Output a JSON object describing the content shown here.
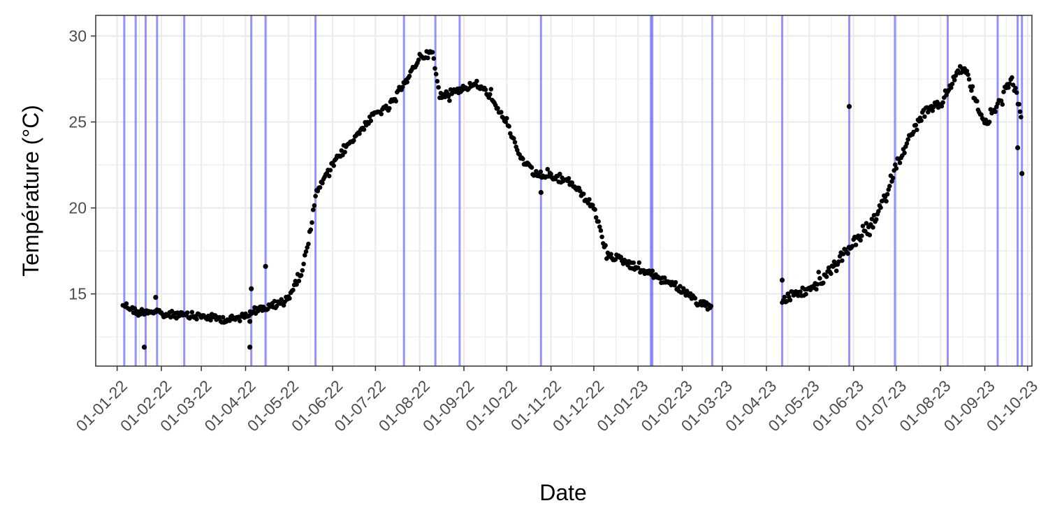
{
  "chart_data": {
    "type": "scatter",
    "title": "",
    "xlabel": "Date",
    "ylabel": "Température (°C)",
    "x_type": "date",
    "xlim": [
      "2021-12-17",
      "2023-10-04"
    ],
    "ylim": [
      10.8,
      31.2
    ],
    "grid": true,
    "legend": "none",
    "x_ticks": [
      "2022-01-01",
      "2022-02-01",
      "2022-03-01",
      "2022-04-01",
      "2022-05-01",
      "2022-06-01",
      "2022-07-01",
      "2022-08-01",
      "2022-09-01",
      "2022-10-01",
      "2022-11-01",
      "2022-12-01",
      "2023-01-01",
      "2023-02-01",
      "2023-03-01",
      "2023-04-01",
      "2023-05-01",
      "2023-06-01",
      "2023-07-01",
      "2023-08-01",
      "2023-09-01",
      "2023-10-01"
    ],
    "x_tick_labels": [
      "01-01-22",
      "01-02-22",
      "01-03-22",
      "01-04-22",
      "01-05-22",
      "01-06-22",
      "01-07-22",
      "01-08-22",
      "01-09-22",
      "01-10-22",
      "01-11-22",
      "01-12-22",
      "01-01-23",
      "01-02-23",
      "01-03-23",
      "01-04-23",
      "01-05-23",
      "01-06-23",
      "01-07-23",
      "01-08-23",
      "01-09-23",
      "01-10-23"
    ],
    "y_ticks": [
      15,
      20,
      25,
      30
    ],
    "y_tick_labels": [
      "15",
      "20",
      "25",
      "30"
    ],
    "colors": {
      "points": "#000000",
      "vlines": "#6666ff",
      "grid": "#ebebeb",
      "panel_border": "#333333"
    },
    "vertical_lines": [
      "2022-01-06",
      "2022-01-14",
      "2022-01-21",
      "2022-01-29",
      "2022-02-17",
      "2022-04-05",
      "2022-04-15",
      "2022-05-20",
      "2022-07-21",
      "2022-08-12",
      "2022-08-29",
      "2022-10-25",
      "2023-01-10",
      "2023-01-11",
      "2023-02-22",
      "2023-04-12",
      "2023-05-29",
      "2023-06-30",
      "2023-08-06",
      "2023-09-10",
      "2023-09-24",
      "2023-09-27"
    ],
    "series": [
      {
        "values": [
          [
            "2022-01-05",
            14.4
          ],
          [
            "2022-01-10",
            14.2
          ],
          [
            "2022-01-15",
            13.9
          ],
          [
            "2022-01-20",
            14.0
          ],
          [
            "2022-01-25",
            14.0
          ],
          [
            "2022-02-01",
            13.8
          ],
          [
            "2022-02-10",
            13.8
          ],
          [
            "2022-02-20",
            13.7
          ],
          [
            "2022-03-01",
            13.7
          ],
          [
            "2022-03-10",
            13.6
          ],
          [
            "2022-03-20",
            13.5
          ],
          [
            "2022-03-28",
            13.6
          ],
          [
            "2022-04-05",
            14.0
          ],
          [
            "2022-04-15",
            14.2
          ],
          [
            "2022-04-22",
            14.3
          ],
          [
            "2022-05-01",
            14.8
          ],
          [
            "2022-05-10",
            16.2
          ],
          [
            "2022-05-15",
            18.0
          ],
          [
            "2022-05-20",
            20.8
          ],
          [
            "2022-06-01",
            22.5
          ],
          [
            "2022-06-15",
            24.0
          ],
          [
            "2022-07-01",
            25.5
          ],
          [
            "2022-07-10",
            25.8
          ],
          [
            "2022-07-20",
            27.0
          ],
          [
            "2022-08-01",
            28.8
          ],
          [
            "2022-08-10",
            29.0
          ],
          [
            "2022-08-15",
            26.5
          ],
          [
            "2022-08-25",
            26.8
          ],
          [
            "2022-09-10",
            27.2
          ],
          [
            "2022-09-20",
            26.5
          ],
          [
            "2022-10-01",
            25.0
          ],
          [
            "2022-10-10",
            23.0
          ],
          [
            "2022-10-20",
            22.0
          ],
          [
            "2022-11-01",
            21.8
          ],
          [
            "2022-11-15",
            21.5
          ],
          [
            "2022-12-01",
            20.0
          ],
          [
            "2022-12-10",
            17.3
          ],
          [
            "2022-12-20",
            17.0
          ],
          [
            "2023-01-01",
            16.5
          ],
          [
            "2023-01-15",
            16.0
          ],
          [
            "2023-01-25",
            15.6
          ],
          [
            "2023-02-01",
            15.2
          ],
          [
            "2023-02-10",
            14.5
          ],
          [
            "2023-02-22",
            14.3
          ],
          [
            "2023-04-12",
            14.5
          ],
          [
            "2023-04-20",
            15.0
          ],
          [
            "2023-05-01",
            15.2
          ],
          [
            "2023-05-10",
            15.8
          ],
          [
            "2023-05-20",
            16.8
          ],
          [
            "2023-06-01",
            18.0
          ],
          [
            "2023-06-10",
            18.5
          ],
          [
            "2023-06-20",
            20.0
          ],
          [
            "2023-07-01",
            22.5
          ],
          [
            "2023-07-10",
            24.0
          ],
          [
            "2023-07-20",
            25.5
          ],
          [
            "2023-08-01",
            26.0
          ],
          [
            "2023-08-10",
            27.5
          ],
          [
            "2023-08-17",
            28.2
          ],
          [
            "2023-08-25",
            26.5
          ],
          [
            "2023-08-31",
            25.0
          ],
          [
            "2023-09-05",
            25.2
          ],
          [
            "2023-09-10",
            26.0
          ],
          [
            "2023-09-15",
            26.8
          ],
          [
            "2023-09-20",
            27.5
          ],
          [
            "2023-09-25",
            26.0
          ],
          [
            "2023-09-27",
            24.5
          ]
        ]
      }
    ],
    "outliers": [
      [
        "2022-01-20",
        11.9
      ],
      [
        "2022-01-28",
        14.8
      ],
      [
        "2022-04-04",
        11.9
      ],
      [
        "2022-04-04",
        13.4
      ],
      [
        "2022-04-05",
        15.3
      ],
      [
        "2022-04-15",
        16.6
      ],
      [
        "2022-10-25",
        20.9
      ],
      [
        "2023-04-12",
        15.8
      ],
      [
        "2023-05-29",
        25.9
      ],
      [
        "2023-09-24",
        23.5
      ],
      [
        "2023-09-27",
        22.0
      ]
    ]
  }
}
